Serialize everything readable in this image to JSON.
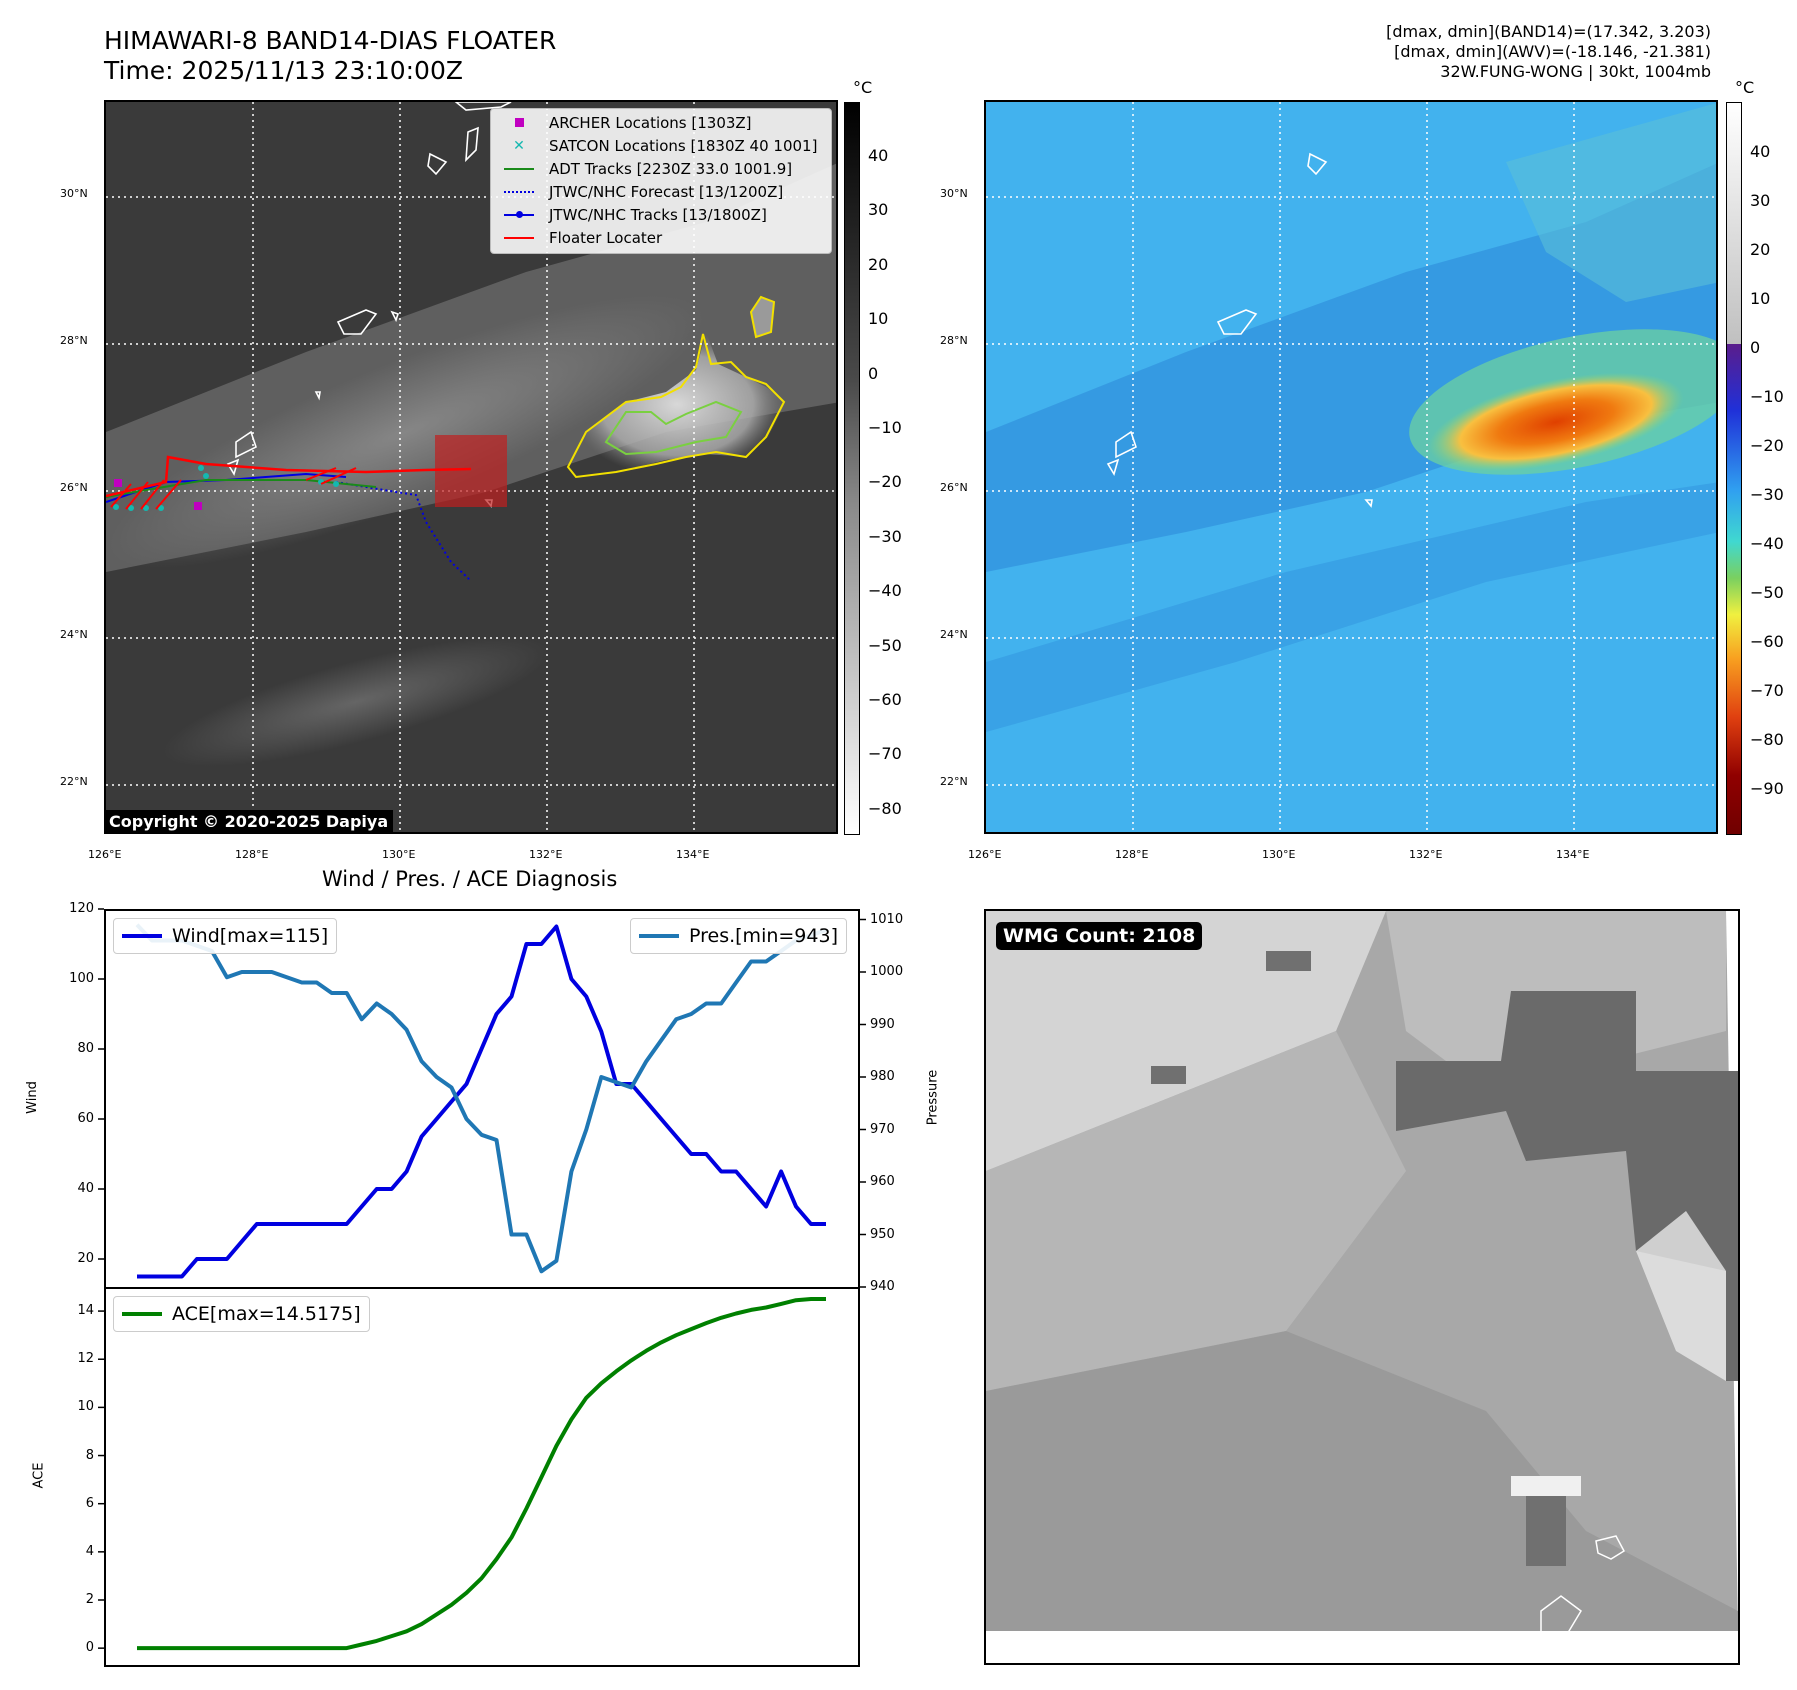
{
  "header": {
    "title_line1": "HIMAWARI-8 BAND14-DIAS FLOATER",
    "title_line2": "Time: 2025/11/13 23:10:00Z",
    "info_line1": "[dmax, dmin](BAND14)=(17.342, 3.203)",
    "info_line2": "[dmax, dmin](AWV)=(-18.146, -21.381)",
    "info_line3": "32W.FUNG-WONG | 30kt, 1004mb"
  },
  "map_axes": {
    "lon_labels": [
      "126°E",
      "128°E",
      "130°E",
      "132°E",
      "134°E"
    ],
    "lat_labels": [
      "30°N",
      "28°N",
      "26°N",
      "24°N",
      "22°N"
    ]
  },
  "ir_panel": {
    "legend": [
      {
        "label": "ARCHER Locations [1303Z]",
        "color": "#c000c0",
        "symbol": "square"
      },
      {
        "label": "SATCON Locations [1830Z 40 1001]",
        "color": "#14b8b0",
        "symbol": "x"
      },
      {
        "label": "ADT Tracks [2230Z 33.0 1001.9]",
        "color": "#1a8a1a",
        "symbol": "line"
      },
      {
        "label": "JTWC/NHC Forecast [13/1200Z]",
        "color": "#0000e0",
        "symbol": "dotted"
      },
      {
        "label": "JTWC/NHC Tracks [13/1800Z]",
        "color": "#0000e0",
        "symbol": "line-dot"
      },
      {
        "label": "Floater Locater",
        "color": "#ff0000",
        "symbol": "line"
      }
    ],
    "copyright": "Copyright © 2020-2025 Dapiya",
    "colorbar_unit": "°C",
    "colorbar_ticks": [
      "40",
      "30",
      "20",
      "10",
      "0",
      "−10",
      "−20",
      "−30",
      "−40",
      "−50",
      "−60",
      "−70",
      "−80"
    ]
  },
  "awv_panel": {
    "colorbar_unit": "°C",
    "colorbar_ticks": [
      "40",
      "30",
      "20",
      "10",
      "0",
      "−10",
      "−20",
      "−30",
      "−40",
      "−50",
      "−60",
      "−70",
      "−80",
      "−90"
    ]
  },
  "diagnosis": {
    "title": "Wind / Pres. / ACE Diagnosis",
    "wind_legend": "Wind[max=115]",
    "pres_legend": "Pres.[min=943]",
    "ace_legend": "ACE[max=14.5175]",
    "wind_axis_label": "Wind",
    "pres_axis_label": "Pressure",
    "ace_axis_label": "ACE",
    "colors": {
      "wind": "#0000e0",
      "pres": "#1f77b4",
      "ace": "#008000"
    }
  },
  "wmg_panel": {
    "badge": "WMG Count: 2108"
  },
  "chart_data": [
    {
      "type": "line",
      "title": "Wind / Pres. / ACE Diagnosis",
      "series": [
        {
          "name": "Wind[max=115]",
          "axis": "left",
          "ylim": [
            12,
            120
          ],
          "yticks": [
            20,
            40,
            60,
            80,
            100,
            120
          ],
          "values": [
            15,
            15,
            15,
            15,
            20,
            20,
            20,
            25,
            30,
            30,
            30,
            30,
            30,
            30,
            30,
            35,
            40,
            40,
            45,
            55,
            60,
            65,
            70,
            80,
            90,
            95,
            110,
            110,
            115,
            100,
            95,
            85,
            70,
            70,
            65,
            60,
            55,
            50,
            50,
            45,
            45,
            40,
            35,
            45,
            35,
            30,
            30
          ]
        },
        {
          "name": "Pres.[min=943]",
          "axis": "right",
          "ylim": [
            940,
            1012
          ],
          "yticks": [
            940,
            950,
            960,
            970,
            980,
            990,
            1000,
            1010
          ],
          "values": [
            1009,
            1006,
            1006,
            1006,
            1005,
            1004,
            999,
            1000,
            1000,
            1000,
            999,
            998,
            998,
            996,
            996,
            991,
            994,
            992,
            989,
            983,
            980,
            978,
            972,
            969,
            968,
            950,
            950,
            943,
            945,
            962,
            970,
            980,
            979,
            978,
            983,
            987,
            991,
            992,
            994,
            994,
            998,
            1002,
            1002,
            1004,
            1006,
            1007,
            1008
          ]
        }
      ],
      "x_count": 47
    },
    {
      "type": "line",
      "series": [
        {
          "name": "ACE[max=14.5175]",
          "ylim": [
            -0.7,
            15
          ],
          "yticks": [
            0,
            2,
            4,
            6,
            8,
            10,
            12,
            14
          ],
          "values": [
            0,
            0,
            0,
            0,
            0,
            0,
            0,
            0,
            0,
            0,
            0,
            0,
            0,
            0,
            0,
            0.15,
            0.3,
            0.5,
            0.7,
            1.0,
            1.4,
            1.8,
            2.3,
            2.9,
            3.7,
            4.6,
            5.8,
            7.1,
            8.4,
            9.5,
            10.4,
            11.0,
            11.5,
            11.95,
            12.35,
            12.7,
            13.0,
            13.25,
            13.5,
            13.72,
            13.9,
            14.05,
            14.15,
            14.3,
            14.45,
            14.5,
            14.5
          ]
        }
      ],
      "x_count": 47
    }
  ]
}
